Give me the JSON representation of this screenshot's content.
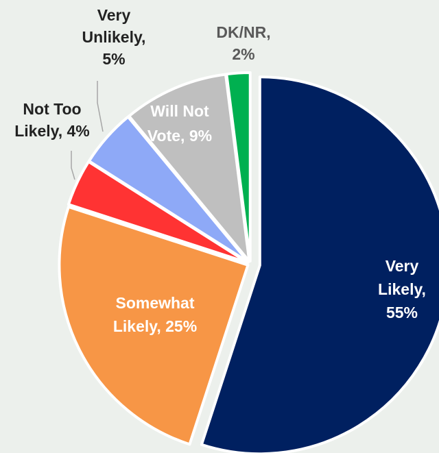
{
  "chart_data": {
    "type": "pie",
    "title": "",
    "legend": "none",
    "slices": [
      {
        "category": "Very Likely",
        "label_lines": [
          "Very",
          "Likely,",
          "55%"
        ],
        "value": 55,
        "color": "#002060",
        "label_color": "#ffffff"
      },
      {
        "category": "Somewhat Likely",
        "label_lines": [
          "Somewhat",
          "Likely, 25%"
        ],
        "value": 25,
        "color": "#f79646",
        "label_color": "#ffffff"
      },
      {
        "category": "Not Too Likely",
        "label_lines": [
          "Not Too",
          "Likely, 4%"
        ],
        "value": 4,
        "color": "#ff3333",
        "label_color": "#222222"
      },
      {
        "category": "Very Unlikely",
        "label_lines": [
          "Very",
          "Unlikely,",
          "5%"
        ],
        "value": 5,
        "color": "#8ea9f7",
        "label_color": "#222222"
      },
      {
        "category": "Will Not Vote",
        "label_lines": [
          "Will Not",
          "Vote, 9%"
        ],
        "value": 9,
        "color": "#bfbfbf",
        "label_color": "#ffffff"
      },
      {
        "category": "DK/NR",
        "label_lines": [
          "DK/NR,",
          "2%"
        ],
        "value": 2,
        "color": "#00b050",
        "label_color": "#595959"
      }
    ]
  }
}
